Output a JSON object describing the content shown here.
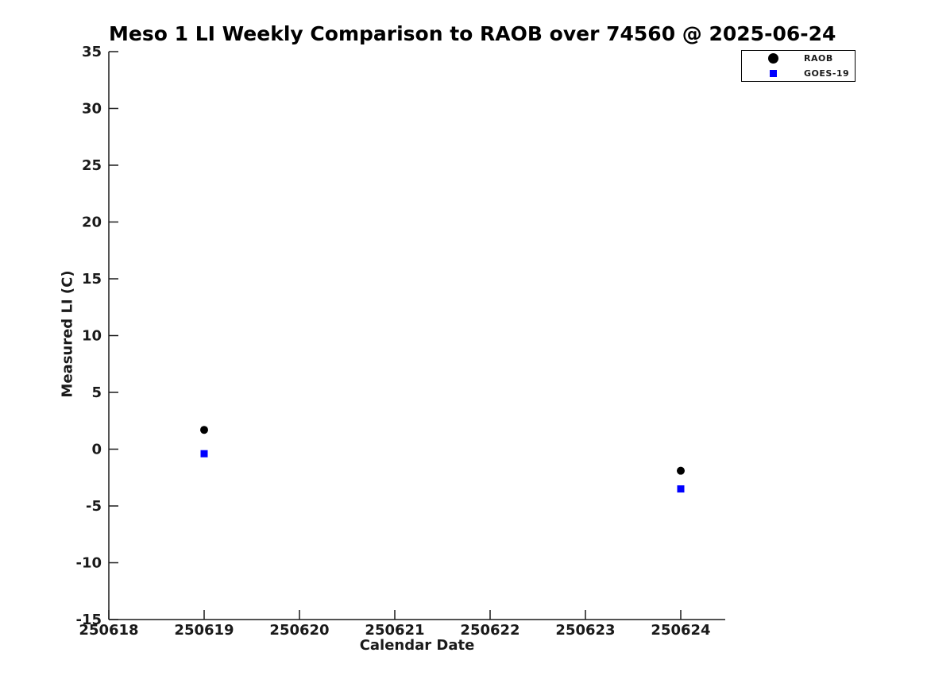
{
  "chart_data": {
    "type": "scatter",
    "title": "Meso 1 LI Weekly Comparison to RAOB over 74560 @ 2025-06-24",
    "xlabel": "Calendar Date",
    "ylabel": "Measured LI (C)",
    "x_tick_labels": [
      "250618",
      "250619",
      "250620",
      "250621",
      "250622",
      "250623",
      "250624"
    ],
    "y_tick_labels": [
      "35",
      "30",
      "25",
      "20",
      "15",
      "10",
      "5",
      "0",
      "-5",
      "-10",
      "-15"
    ],
    "ylim": [
      -15,
      35
    ],
    "y_tick_step": 5,
    "grid": false,
    "legend_position": "top-right",
    "axis_color": "#1a1a1a",
    "background_color": "#ffffff",
    "series": [
      {
        "name": "RAOB",
        "marker": "circle",
        "color": "#000000",
        "points": [
          {
            "x": "250619",
            "y": 1.7
          },
          {
            "x": "250624",
            "y": -1.9
          }
        ]
      },
      {
        "name": "GOES-19",
        "marker": "square",
        "color": "#0000ff",
        "points": [
          {
            "x": "250619",
            "y": -0.4
          },
          {
            "x": "250624",
            "y": -3.5
          }
        ]
      }
    ]
  }
}
